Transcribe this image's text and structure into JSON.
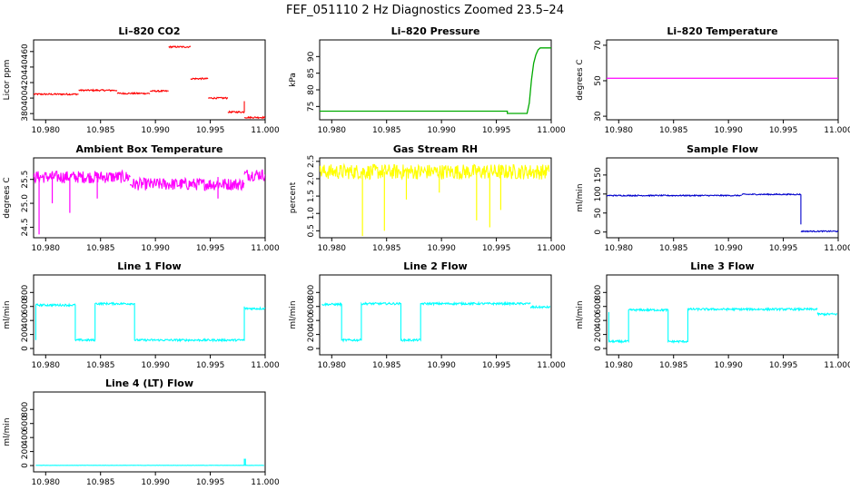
{
  "figure": {
    "title": "FEF_051110  2 Hz Diagnostics Zoomed 23.5–24"
  },
  "chart_data": [
    {
      "type": "line",
      "title": "Li–820 CO2",
      "ylabel": "Licor ppm",
      "xlim": [
        10.9789,
        11.0
      ],
      "ylim": [
        372,
        475
      ],
      "xticks": [
        10.98,
        10.985,
        10.99,
        10.995,
        11.0
      ],
      "xtick_labels": [
        "10.980",
        "10.985",
        "10.990",
        "10.995",
        "11.000"
      ],
      "yticks": [
        380,
        400,
        420,
        440,
        460
      ],
      "ytick_labels": [
        "380",
        "400",
        "420",
        "440",
        "460"
      ],
      "color": "#ff0000",
      "series": [
        {
          "segments": [
            {
              "x": [
                10.9789,
                10.983
              ],
              "y": [
                405,
                405
              ]
            },
            {
              "x": [
                10.983,
                10.9865
              ],
              "y": [
                410,
                410
              ]
            },
            {
              "x": [
                10.9865,
                10.9895
              ],
              "y": [
                406,
                406
              ]
            },
            {
              "x": [
                10.9895,
                10.9912
              ],
              "y": [
                409,
                409
              ]
            },
            {
              "x": [
                10.9912,
                10.9932
              ],
              "y": [
                466,
                466
              ]
            },
            {
              "x": [
                10.9932,
                10.9948
              ],
              "y": [
                425,
                425
              ]
            },
            {
              "x": [
                10.9948,
                10.9966
              ],
              "y": [
                400,
                400
              ]
            },
            {
              "x": [
                10.9966,
                10.9981
              ],
              "y": [
                382,
                382
              ]
            },
            {
              "x": [
                10.9981,
                10.9981
              ],
              "y": [
                382,
                396
              ]
            },
            {
              "x": [
                10.9981,
                11.0
              ],
              "y": [
                375,
                375
              ]
            }
          ],
          "noise": 1
        }
      ]
    },
    {
      "type": "line",
      "title": "Li–820 Pressure",
      "ylabel": "kPa",
      "xlim": [
        10.9789,
        11.0
      ],
      "ylim": [
        71,
        95
      ],
      "xticks": [
        10.98,
        10.985,
        10.99,
        10.995,
        11.0
      ],
      "xtick_labels": [
        "10.980",
        "10.985",
        "10.990",
        "10.995",
        "11.000"
      ],
      "yticks": [
        75,
        80,
        85,
        90
      ],
      "ytick_labels": [
        "75",
        "80",
        "85",
        "90"
      ],
      "color": "#00aa00",
      "series": [
        {
          "segments": [
            {
              "x": [
                10.9789,
                10.996,
                10.996,
                10.9978,
                10.998,
                10.9982,
                10.9984,
                10.9986,
                10.9988,
                10.999,
                11.0
              ],
              "y": [
                73.6,
                73.6,
                72.9,
                72.9,
                76,
                83,
                88,
                90.5,
                92,
                92.6,
                92.6
              ]
            }
          ],
          "noise": 0
        }
      ]
    },
    {
      "type": "line",
      "title": "Li–820 Temperature",
      "ylabel": "degrees C",
      "xlim": [
        10.9789,
        11.0
      ],
      "ylim": [
        28,
        73
      ],
      "xticks": [
        10.98,
        10.985,
        10.99,
        10.995,
        11.0
      ],
      "xtick_labels": [
        "10.980",
        "10.985",
        "10.990",
        "10.995",
        "11.000"
      ],
      "yticks": [
        30,
        50,
        70
      ],
      "ytick_labels": [
        "30",
        "50",
        "70"
      ],
      "color": "#ff00ff",
      "series": [
        {
          "segments": [
            {
              "x": [
                10.9789,
                11.0
              ],
              "y": [
                51.4,
                51.4
              ]
            }
          ],
          "noise": 0
        }
      ]
    },
    {
      "type": "line",
      "title": "Ambient Box Temperature",
      "ylabel": "degrees C",
      "xlim": [
        10.9789,
        11.0
      ],
      "ylim": [
        24.28,
        25.95
      ],
      "xticks": [
        10.98,
        10.985,
        10.99,
        10.995,
        11.0
      ],
      "xtick_labels": [
        "10.980",
        "10.985",
        "10.990",
        "10.995",
        "11.000"
      ],
      "yticks": [
        24.5,
        25.0,
        25.5
      ],
      "ytick_labels": [
        "24.5",
        "25.0",
        "25.5"
      ],
      "color": "#ff00ff",
      "series": [
        {
          "segments": [
            {
              "x": [
                10.9789,
                10.9877
              ],
              "y": [
                25.55,
                25.55
              ]
            },
            {
              "x": [
                10.9877,
                10.9981
              ],
              "y": [
                25.4,
                25.4
              ]
            },
            {
              "x": [
                10.9981,
                11.0
              ],
              "y": [
                25.6,
                25.6
              ]
            }
          ],
          "noise": 0.13,
          "spikes": [
            {
              "x": 10.9794,
              "y": 24.35
            },
            {
              "x": 10.9822,
              "y": 24.8
            },
            {
              "x": 10.9806,
              "y": 25.0
            },
            {
              "x": 10.9847,
              "y": 25.1
            },
            {
              "x": 10.9957,
              "y": 25.1
            }
          ]
        }
      ]
    },
    {
      "type": "line",
      "title": "Gas Stream RH",
      "ylabel": "percent",
      "xlim": [
        10.9789,
        11.0
      ],
      "ylim": [
        0.3,
        2.6
      ],
      "xticks": [
        10.98,
        10.985,
        10.99,
        10.995,
        11.0
      ],
      "xtick_labels": [
        "10.980",
        "10.985",
        "10.990",
        "10.995",
        "11.000"
      ],
      "yticks": [
        0.5,
        1.0,
        1.5,
        2.0,
        2.5
      ],
      "ytick_labels": [
        "0.5",
        "1.0",
        "1.5",
        "2.0",
        "2.5"
      ],
      "color": "#ffff00",
      "series": [
        {
          "segments": [
            {
              "x": [
                10.9789,
                10.9998
              ],
              "y": [
                2.2,
                2.2
              ]
            }
          ],
          "noise": 0.22,
          "spikes": [
            {
              "x": 10.9828,
              "y": 0.35
            },
            {
              "x": 10.9848,
              "y": 0.5
            },
            {
              "x": 10.9868,
              "y": 1.4
            },
            {
              "x": 10.9932,
              "y": 0.8
            },
            {
              "x": 10.9944,
              "y": 0.6
            },
            {
              "x": 10.9954,
              "y": 1.1
            },
            {
              "x": 10.9898,
              "y": 1.6
            }
          ]
        }
      ]
    },
    {
      "type": "line",
      "title": "Sample Flow",
      "ylabel": "ml/min",
      "xlim": [
        10.9789,
        11.0
      ],
      "ylim": [
        -15,
        195
      ],
      "xticks": [
        10.98,
        10.985,
        10.99,
        10.995,
        11.0
      ],
      "xtick_labels": [
        "10.980",
        "10.985",
        "10.990",
        "10.995",
        "11.000"
      ],
      "yticks": [
        0,
        50,
        100,
        150
      ],
      "ytick_labels": [
        "0",
        "50",
        "100",
        "150"
      ],
      "color": "#0000cc",
      "series": [
        {
          "segments": [
            {
              "x": [
                10.9789,
                10.9912
              ],
              "y": [
                96,
                96
              ]
            },
            {
              "x": [
                10.9912,
                10.9966
              ],
              "y": [
                99,
                99
              ]
            },
            {
              "x": [
                10.9966,
                10.9966
              ],
              "y": [
                99,
                20
              ]
            },
            {
              "x": [
                10.9966,
                11.0
              ],
              "y": [
                2,
                2
              ]
            }
          ],
          "noise": 1.5
        }
      ]
    },
    {
      "type": "line",
      "title": "Line 1 Flow",
      "ylabel": "ml/min",
      "xlim": [
        10.9789,
        11.0
      ],
      "ylim": [
        -90,
        1050
      ],
      "xticks": [
        10.98,
        10.985,
        10.99,
        10.995,
        11.0
      ],
      "xtick_labels": [
        "10.980",
        "10.985",
        "10.990",
        "10.995",
        "11.000"
      ],
      "yticks": [
        0,
        200,
        400,
        600,
        800
      ],
      "ytick_labels": [
        "0",
        "200",
        "400",
        "600",
        "800"
      ],
      "color": "#00ffff",
      "series": [
        {
          "segments": [
            {
              "x": [
                10.9791,
                10.9791,
                10.9827,
                10.9827,
                10.9845,
                10.9845,
                10.9881,
                10.9881,
                10.9981,
                10.9981
              ],
              "y": [
                120,
                620,
                620,
                120,
                120,
                640,
                640,
                120,
                120,
                600
              ]
            },
            {
              "x": [
                10.9981,
                11.0
              ],
              "y": [
                570,
                570
              ]
            }
          ],
          "noise": 15
        }
      ]
    },
    {
      "type": "line",
      "title": "Line 2 Flow",
      "ylabel": "ml/min",
      "xlim": [
        10.9789,
        11.0
      ],
      "ylim": [
        -90,
        1050
      ],
      "xticks": [
        10.98,
        10.985,
        10.99,
        10.995,
        11.0
      ],
      "xtick_labels": [
        "10.980",
        "10.985",
        "10.990",
        "10.995",
        "11.000"
      ],
      "yticks": [
        0,
        200,
        400,
        600,
        800
      ],
      "ytick_labels": [
        "0",
        "200",
        "400",
        "600",
        "800"
      ],
      "color": "#00ffff",
      "series": [
        {
          "segments": [
            {
              "x": [
                10.9791,
                10.9809,
                10.9809,
                10.9827,
                10.9827,
                10.9863,
                10.9863,
                10.9881,
                10.9881,
                10.9981
              ],
              "y": [
                630,
                630,
                120,
                120,
                640,
                640,
                120,
                120,
                640,
                640
              ]
            },
            {
              "x": [
                10.9981,
                10.9999
              ],
              "y": [
                590,
                590
              ]
            }
          ],
          "noise": 15
        }
      ]
    },
    {
      "type": "line",
      "title": "Line 3 Flow",
      "ylabel": "ml/min",
      "xlim": [
        10.9789,
        11.0
      ],
      "ylim": [
        -90,
        1050
      ],
      "xticks": [
        10.98,
        10.985,
        10.99,
        10.995,
        11.0
      ],
      "xtick_labels": [
        "10.980",
        "10.985",
        "10.990",
        "10.995",
        "11.000"
      ],
      "yticks": [
        0,
        200,
        400,
        600,
        800
      ],
      "ytick_labels": [
        "0",
        "200",
        "400",
        "600",
        "800"
      ],
      "color": "#00ffff",
      "series": [
        {
          "segments": [
            {
              "x": [
                10.9791,
                10.9791,
                10.9809,
                10.9809,
                10.9845,
                10.9845,
                10.9863,
                10.9863,
                10.9981
              ],
              "y": [
                520,
                100,
                100,
                550,
                550,
                100,
                100,
                560,
                560
              ]
            },
            {
              "x": [
                10.9981,
                10.9999
              ],
              "y": [
                490,
                490
              ]
            }
          ],
          "noise": 15
        }
      ]
    },
    {
      "type": "line",
      "title": "Line 4 (LT) Flow",
      "ylabel": "ml/min",
      "xlim": [
        10.9789,
        11.0
      ],
      "ylim": [
        -90,
        1050
      ],
      "xticks": [
        10.98,
        10.985,
        10.99,
        10.995,
        11.0
      ],
      "xtick_labels": [
        "10.980",
        "10.985",
        "10.990",
        "10.995",
        "11.000"
      ],
      "yticks": [
        0,
        200,
        400,
        600,
        800
      ],
      "ytick_labels": [
        "0",
        "200",
        "400",
        "600",
        "800"
      ],
      "color": "#00ffff",
      "series": [
        {
          "segments": [
            {
              "x": [
                10.9791,
                10.9981,
                10.9981,
                10.9982,
                10.9982,
                10.9999
              ],
              "y": [
                3,
                3,
                90,
                90,
                3,
                3
              ]
            }
          ],
          "noise": 2
        }
      ]
    }
  ]
}
